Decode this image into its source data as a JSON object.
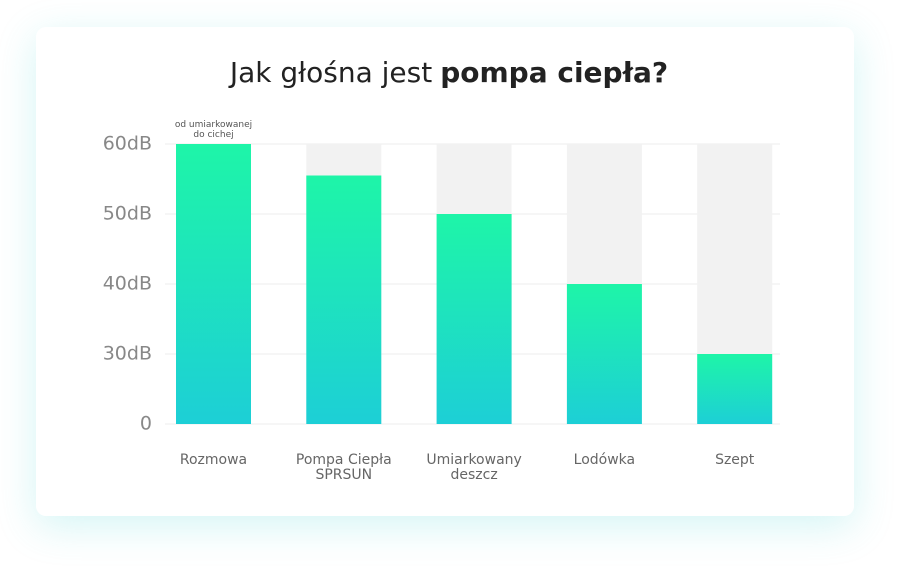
{
  "chart_data": {
    "type": "bar",
    "title": {
      "regular": "Jak głośna jest",
      "bold": "pompa ciepła?"
    },
    "annotation": "od umiarkowanej do cichej",
    "categories": [
      "Rozmowa",
      "Pompa Ciepła SPRSUN",
      "Umiarkowany deszcz",
      "Lodówka",
      "Szept"
    ],
    "values": [
      60,
      55.5,
      50,
      40,
      30
    ],
    "colors": [
      "#1ef5a8",
      "#1dcfd6"
    ],
    "ylim": [
      0,
      60
    ],
    "yticks": [
      0,
      {
        "value": 30,
        "label": "30dB"
      },
      {
        "value": 40,
        "label": "40dB"
      },
      {
        "value": 50,
        "label": "50dB"
      },
      {
        "value": 60,
        "label": "60dB"
      }
    ],
    "scale": "tick-spaced",
    "grid": true
  }
}
